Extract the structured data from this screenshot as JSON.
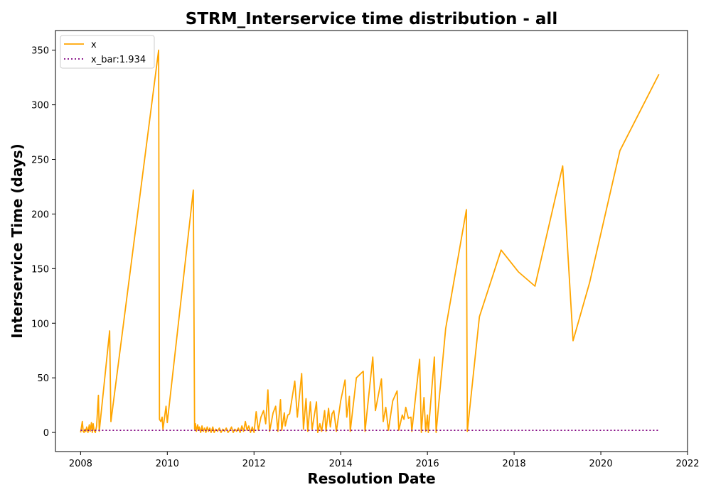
{
  "chart_data": {
    "type": "line",
    "title": "STRM_Interservice time distribution - all",
    "xlabel": "Resolution Date",
    "ylabel": "Interservice Time (days)",
    "x_ticks": [
      "2008",
      "2010",
      "2012",
      "2014",
      "2016",
      "2018",
      "2020",
      "2022"
    ],
    "y_ticks": [
      "0",
      "50",
      "100",
      "150",
      "200",
      "250",
      "300",
      "350"
    ],
    "xlim": [
      2007.42,
      2022.0
    ],
    "ylim": [
      -17.5,
      368
    ],
    "grid": false,
    "legend_placement": "upper-left",
    "series": [
      {
        "name": "x",
        "color": "#FFA500",
        "style": "solid",
        "points": [
          [
            2008.0,
            0
          ],
          [
            2008.04,
            10
          ],
          [
            2008.06,
            1
          ],
          [
            2008.08,
            0
          ],
          [
            2008.1,
            3
          ],
          [
            2008.12,
            1
          ],
          [
            2008.14,
            5
          ],
          [
            2008.17,
            0
          ],
          [
            2008.2,
            7
          ],
          [
            2008.22,
            1
          ],
          [
            2008.25,
            9
          ],
          [
            2008.27,
            0
          ],
          [
            2008.29,
            8
          ],
          [
            2008.31,
            2
          ],
          [
            2008.34,
            0
          ],
          [
            2008.37,
            6
          ],
          [
            2008.41,
            34
          ],
          [
            2008.43,
            1
          ],
          [
            2008.67,
            93
          ],
          [
            2008.7,
            10
          ],
          [
            2009.8,
            350
          ],
          [
            2009.82,
            12
          ],
          [
            2009.85,
            10
          ],
          [
            2009.88,
            14
          ],
          [
            2009.9,
            3
          ],
          [
            2009.97,
            24
          ],
          [
            2010.0,
            9
          ],
          [
            2010.6,
            222
          ],
          [
            2010.63,
            3
          ],
          [
            2010.65,
            8
          ],
          [
            2010.67,
            1
          ],
          [
            2010.7,
            7
          ],
          [
            2010.72,
            2
          ],
          [
            2010.74,
            5
          ],
          [
            2010.77,
            0
          ],
          [
            2010.8,
            6
          ],
          [
            2010.83,
            1
          ],
          [
            2010.86,
            4
          ],
          [
            2010.89,
            0
          ],
          [
            2010.92,
            5
          ],
          [
            2010.95,
            1
          ],
          [
            2010.98,
            4
          ],
          [
            2011.01,
            0
          ],
          [
            2011.05,
            5
          ],
          [
            2011.08,
            0
          ],
          [
            2011.12,
            3
          ],
          [
            2011.16,
            1
          ],
          [
            2011.2,
            4
          ],
          [
            2011.24,
            0
          ],
          [
            2011.28,
            3
          ],
          [
            2011.32,
            1
          ],
          [
            2011.36,
            4
          ],
          [
            2011.4,
            0
          ],
          [
            2011.44,
            2
          ],
          [
            2011.48,
            5
          ],
          [
            2011.52,
            0
          ],
          [
            2011.56,
            3
          ],
          [
            2011.6,
            1
          ],
          [
            2011.64,
            4
          ],
          [
            2011.68,
            0
          ],
          [
            2011.72,
            6
          ],
          [
            2011.76,
            1
          ],
          [
            2011.8,
            10
          ],
          [
            2011.84,
            2
          ],
          [
            2011.88,
            6
          ],
          [
            2011.92,
            0
          ],
          [
            2011.96,
            5
          ],
          [
            2012.0,
            0
          ],
          [
            2012.05,
            19
          ],
          [
            2012.1,
            2
          ],
          [
            2012.16,
            14
          ],
          [
            2012.22,
            20
          ],
          [
            2012.27,
            8
          ],
          [
            2012.32,
            39
          ],
          [
            2012.36,
            1
          ],
          [
            2012.44,
            18
          ],
          [
            2012.5,
            24
          ],
          [
            2012.55,
            1
          ],
          [
            2012.61,
            30
          ],
          [
            2012.64,
            2
          ],
          [
            2012.7,
            18
          ],
          [
            2012.72,
            6
          ],
          [
            2012.78,
            16
          ],
          [
            2012.82,
            17
          ],
          [
            2012.94,
            47
          ],
          [
            2013.0,
            14
          ],
          [
            2013.1,
            54
          ],
          [
            2013.14,
            3
          ],
          [
            2013.2,
            31
          ],
          [
            2013.24,
            1
          ],
          [
            2013.3,
            28
          ],
          [
            2013.34,
            3
          ],
          [
            2013.44,
            28
          ],
          [
            2013.47,
            0
          ],
          [
            2013.52,
            8
          ],
          [
            2013.56,
            1
          ],
          [
            2013.63,
            20
          ],
          [
            2013.66,
            1
          ],
          [
            2013.72,
            22
          ],
          [
            2013.76,
            5
          ],
          [
            2013.8,
            17
          ],
          [
            2013.84,
            20
          ],
          [
            2013.9,
            1
          ],
          [
            2014.0,
            29
          ],
          [
            2014.1,
            48
          ],
          [
            2014.14,
            14
          ],
          [
            2014.2,
            33
          ],
          [
            2014.22,
            1
          ],
          [
            2014.36,
            50
          ],
          [
            2014.52,
            56
          ],
          [
            2014.56,
            1
          ],
          [
            2014.74,
            69
          ],
          [
            2014.8,
            20
          ],
          [
            2014.94,
            49
          ],
          [
            2014.98,
            10
          ],
          [
            2015.04,
            23
          ],
          [
            2015.1,
            2
          ],
          [
            2015.2,
            29
          ],
          [
            2015.3,
            38
          ],
          [
            2015.34,
            2
          ],
          [
            2015.42,
            16
          ],
          [
            2015.46,
            12
          ],
          [
            2015.5,
            23
          ],
          [
            2015.56,
            13
          ],
          [
            2015.62,
            14
          ],
          [
            2015.64,
            1
          ],
          [
            2015.82,
            67
          ],
          [
            2015.86,
            0
          ],
          [
            2015.92,
            32
          ],
          [
            2015.96,
            1
          ],
          [
            2016.0,
            16
          ],
          [
            2016.02,
            0
          ],
          [
            2016.16,
            69
          ],
          [
            2016.2,
            0
          ],
          [
            2016.42,
            95
          ],
          [
            2016.9,
            204
          ],
          [
            2016.92,
            1
          ],
          [
            2017.2,
            106
          ],
          [
            2017.7,
            167
          ],
          [
            2018.1,
            147
          ],
          [
            2018.48,
            134
          ],
          [
            2019.12,
            244
          ],
          [
            2019.36,
            84
          ],
          [
            2019.74,
            137
          ],
          [
            2020.44,
            258
          ],
          [
            2021.34,
            328
          ]
        ]
      },
      {
        "name": "x_bar:1.934",
        "color": "#800080",
        "style": "dotted",
        "points": [
          [
            2008.0,
            1.934
          ],
          [
            2021.34,
            1.934
          ]
        ]
      }
    ]
  }
}
